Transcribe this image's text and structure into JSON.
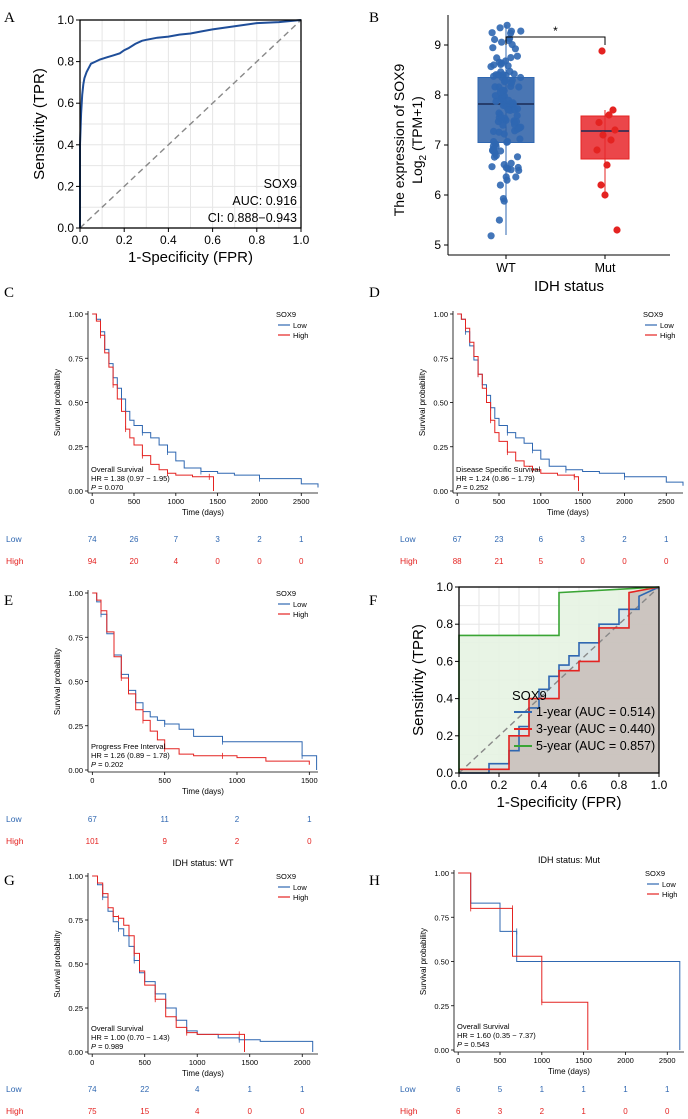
{
  "chart_data": [
    {
      "panel": "A",
      "type": "line",
      "subtype": "roc",
      "xlabel": "1-Specificity (FPR)",
      "ylabel": "Sensitivity (TPR)",
      "xlim": [
        0,
        1
      ],
      "ylim": [
        0,
        1
      ],
      "xticks": [
        "0.0",
        "0.2",
        "0.4",
        "0.6",
        "0.8",
        "1.0"
      ],
      "yticks": [
        "0.0",
        "0.2",
        "0.4",
        "0.6",
        "0.8",
        "1.0"
      ],
      "grid": true,
      "annotations": [
        "SOX9",
        "AUC: 0.916",
        "CI: 0.888−0.943"
      ],
      "series": [
        {
          "name": "SOX9",
          "color": "#1f4e99",
          "x": [
            0,
            0,
            0.005,
            0.01,
            0.015,
            0.02,
            0.03,
            0.04,
            0.05,
            0.07,
            0.09,
            0.12,
            0.15,
            0.18,
            0.2,
            0.22,
            0.25,
            0.28,
            0.3,
            0.35,
            0.4,
            0.45,
            0.5,
            0.55,
            0.6,
            0.7,
            0.8,
            0.9,
            1.0
          ],
          "y": [
            0,
            0.4,
            0.55,
            0.64,
            0.69,
            0.72,
            0.75,
            0.77,
            0.79,
            0.8,
            0.81,
            0.82,
            0.83,
            0.84,
            0.855,
            0.865,
            0.885,
            0.9,
            0.905,
            0.915,
            0.92,
            0.93,
            0.935,
            0.945,
            0.955,
            0.97,
            0.985,
            0.99,
            1.0
          ]
        },
        {
          "name": "reference",
          "color": "#888888",
          "x": [
            0,
            1
          ],
          "y": [
            0,
            1
          ]
        }
      ]
    },
    {
      "panel": "B",
      "type": "scatter",
      "subtype": "boxplot",
      "categories": [
        "WT",
        "Mut"
      ],
      "xlabel": "IDH status",
      "ylabel_line1": "The expression of SOX9",
      "ylabel_line2": "Log",
      "ylabel_sub": "2",
      "ylabel_tail": " (TPM+1)",
      "ylim": [
        4.8,
        9.6
      ],
      "yticks": [
        "5",
        "6",
        "7",
        "8",
        "9"
      ],
      "significance": "*",
      "series": [
        {
          "name": "WT",
          "color": "#2f67b1",
          "q1": 7.05,
          "median": 7.82,
          "q3": 8.35,
          "lower": 5.2,
          "upper": 9.4
        },
        {
          "name": "Mut",
          "color": "#e42321",
          "q1": 6.72,
          "median": 7.28,
          "q3": 7.58,
          "lower": 6.0,
          "upper": 7.7,
          "points": [
            8.88,
            7.7,
            7.6,
            7.45,
            7.3,
            7.2,
            7.1,
            6.9,
            6.6,
            6.2,
            6.0,
            5.3
          ]
        }
      ]
    },
    {
      "panel": "C",
      "type": "line",
      "subtype": "kaplan-meier",
      "legend_title": "SOX9",
      "legend_labels": [
        "Low",
        "High"
      ],
      "ylabel": "Survival probability",
      "xlabel": "Time (days)",
      "xlim": [
        -50,
        2700
      ],
      "xticks": [
        "0",
        "500",
        "1000",
        "1500",
        "2000",
        "2500"
      ],
      "yticks": [
        "0.00",
        "0.25",
        "0.50",
        "0.75",
        "1.00"
      ],
      "annotation_title": "Overall Survival",
      "hr_text": "HR = 1.38 (0.97 − 1.95)",
      "p_label": "P",
      "p_value": " = 0.070",
      "risk_labels": [
        "Low",
        "High"
      ],
      "risk_low": [
        "74",
        "26",
        "7",
        "3",
        "2",
        "1"
      ],
      "risk_high": [
        "94",
        "20",
        "4",
        "0",
        "0",
        "0"
      ],
      "series": [
        {
          "name": "Low",
          "color": "#2f67b1",
          "x": [
            0,
            50,
            100,
            150,
            200,
            250,
            300,
            350,
            400,
            450,
            500,
            600,
            700,
            800,
            900,
            1000,
            1100,
            1300,
            1500,
            1700,
            2000,
            2500,
            2700
          ],
          "y": [
            1.0,
            0.97,
            0.9,
            0.8,
            0.72,
            0.64,
            0.58,
            0.52,
            0.45,
            0.4,
            0.37,
            0.33,
            0.3,
            0.26,
            0.22,
            0.17,
            0.13,
            0.11,
            0.1,
            0.09,
            0.07,
            0.04,
            0.02
          ]
        },
        {
          "name": "High",
          "color": "#e42321",
          "x": [
            0,
            50,
            100,
            150,
            200,
            250,
            300,
            350,
            400,
            450,
            500,
            600,
            700,
            800,
            900,
            1000,
            1200,
            1400,
            1450
          ],
          "y": [
            1.0,
            0.96,
            0.88,
            0.78,
            0.7,
            0.6,
            0.52,
            0.45,
            0.35,
            0.3,
            0.26,
            0.2,
            0.15,
            0.12,
            0.1,
            0.09,
            0.08,
            0.08,
            0.0
          ]
        }
      ]
    },
    {
      "panel": "D",
      "type": "line",
      "subtype": "kaplan-meier",
      "legend_title": "SOX9",
      "legend_labels": [
        "Low",
        "High"
      ],
      "ylabel": "Survival probability",
      "xlabel": "Time (days)",
      "xlim": [
        -50,
        2700
      ],
      "xticks": [
        "0",
        "500",
        "1000",
        "1500",
        "2000",
        "2500"
      ],
      "yticks": [
        "0.00",
        "0.25",
        "0.50",
        "0.75",
        "1.00"
      ],
      "annotation_title": "Disease Specific Survival",
      "hr_text": "HR = 1.24 (0.86 − 1.79)",
      "p_label": "P",
      "p_value": " = 0.252",
      "risk_labels": [
        "Low",
        "High"
      ],
      "risk_low": [
        "67",
        "23",
        "6",
        "3",
        "2",
        "1"
      ],
      "risk_high": [
        "88",
        "21",
        "5",
        "0",
        "0",
        "0"
      ],
      "series": [
        {
          "name": "Low",
          "color": "#2f67b1",
          "x": [
            0,
            50,
            100,
            150,
            200,
            250,
            300,
            350,
            400,
            450,
            500,
            600,
            700,
            800,
            900,
            1000,
            1100,
            1300,
            1500,
            1700,
            2000,
            2500,
            2700
          ],
          "y": [
            1.0,
            0.97,
            0.9,
            0.82,
            0.74,
            0.66,
            0.6,
            0.54,
            0.47,
            0.41,
            0.37,
            0.33,
            0.3,
            0.27,
            0.23,
            0.18,
            0.14,
            0.12,
            0.11,
            0.1,
            0.08,
            0.05,
            0.03
          ]
        },
        {
          "name": "High",
          "color": "#e42321",
          "x": [
            0,
            50,
            100,
            150,
            200,
            250,
            300,
            350,
            400,
            450,
            500,
            600,
            700,
            800,
            900,
            1000,
            1200,
            1400,
            1450
          ],
          "y": [
            1.0,
            0.97,
            0.92,
            0.84,
            0.76,
            0.66,
            0.58,
            0.5,
            0.4,
            0.33,
            0.28,
            0.22,
            0.17,
            0.14,
            0.12,
            0.1,
            0.09,
            0.08,
            0.0
          ]
        }
      ]
    },
    {
      "panel": "E",
      "type": "line",
      "subtype": "kaplan-meier",
      "legend_title": "SOX9",
      "legend_labels": [
        "Low",
        "High"
      ],
      "ylabel": "Survival probability",
      "xlabel": "Time (days)",
      "xlim": [
        -30,
        1560
      ],
      "xticks": [
        "0",
        "500",
        "1000",
        "1500"
      ],
      "yticks": [
        "0.00",
        "0.25",
        "0.50",
        "0.75",
        "1.00"
      ],
      "annotation_title": "Progress Free Interval",
      "hr_text": "HR = 1.26 (0.89 − 1.78)",
      "p_label": "P",
      "p_value": " = 0.202",
      "risk_labels": [
        "Low",
        "High"
      ],
      "risk_low": [
        "67",
        "11",
        "2",
        "1"
      ],
      "risk_high": [
        "101",
        "9",
        "2",
        "0"
      ],
      "series": [
        {
          "name": "Low",
          "color": "#2f67b1",
          "x": [
            0,
            30,
            60,
            100,
            150,
            200,
            250,
            300,
            350,
            400,
            450,
            500,
            600,
            700,
            900,
            1000,
            1200,
            1450,
            1550
          ],
          "y": [
            1.0,
            0.95,
            0.88,
            0.77,
            0.65,
            0.54,
            0.45,
            0.38,
            0.33,
            0.3,
            0.28,
            0.26,
            0.23,
            0.19,
            0.16,
            0.16,
            0.16,
            0.08,
            0.0
          ]
        },
        {
          "name": "High",
          "color": "#e42321",
          "x": [
            0,
            30,
            60,
            100,
            150,
            200,
            250,
            300,
            350,
            400,
            450,
            500,
            600,
            700,
            900,
            1000,
            1200,
            1500
          ],
          "y": [
            1.0,
            0.96,
            0.9,
            0.78,
            0.64,
            0.52,
            0.43,
            0.34,
            0.28,
            0.22,
            0.17,
            0.12,
            0.09,
            0.08,
            0.08,
            0.07,
            0.05,
            0.03
          ]
        }
      ]
    },
    {
      "panel": "F",
      "type": "line",
      "subtype": "time-roc",
      "xlabel": "1-Specificity (FPR)",
      "ylabel": "Sensitivity (TPR)",
      "xlim": [
        0,
        1
      ],
      "ylim": [
        0,
        1
      ],
      "xticks": [
        "0.0",
        "0.2",
        "0.4",
        "0.6",
        "0.8",
        "1.0"
      ],
      "yticks": [
        "0.0",
        "0.2",
        "0.4",
        "0.6",
        "0.8",
        "1.0"
      ],
      "legend_title": "SOX9",
      "series": [
        {
          "name": "1-year (AUC = 0.514)",
          "color": "#2f67b1",
          "x": [
            0,
            0.15,
            0.15,
            0.25,
            0.25,
            0.3,
            0.3,
            0.35,
            0.35,
            0.4,
            0.4,
            0.45,
            0.45,
            0.5,
            0.5,
            0.55,
            0.55,
            0.6,
            0.6,
            0.7,
            0.7,
            0.8,
            0.8,
            0.9,
            0.9,
            1.0
          ],
          "y": [
            0,
            0,
            0.05,
            0.05,
            0.12,
            0.12,
            0.25,
            0.25,
            0.35,
            0.35,
            0.45,
            0.45,
            0.52,
            0.52,
            0.58,
            0.58,
            0.63,
            0.63,
            0.7,
            0.7,
            0.8,
            0.8,
            0.88,
            0.88,
            0.95,
            1.0
          ]
        },
        {
          "name": "3-year (AUC = 0.440)",
          "color": "#e42321",
          "x": [
            0,
            0.25,
            0.25,
            0.35,
            0.35,
            0.5,
            0.5,
            0.6,
            0.6,
            0.7,
            0.7,
            0.85,
            0.85,
            1.0
          ],
          "y": [
            0.02,
            0.02,
            0.2,
            0.2,
            0.4,
            0.4,
            0.55,
            0.55,
            0.6,
            0.6,
            0.78,
            0.78,
            0.97,
            1.0
          ]
        },
        {
          "name": "5-year (AUC = 0.857)",
          "color": "#3aa535",
          "x": [
            0,
            0,
            0.5,
            0.5,
            1.0
          ],
          "y": [
            0,
            0.74,
            0.74,
            0.97,
            1.0
          ]
        },
        {
          "name": "reference",
          "color": "#888888",
          "x": [
            0,
            1
          ],
          "y": [
            0,
            1
          ]
        }
      ]
    },
    {
      "panel": "G",
      "type": "line",
      "subtype": "kaplan-meier",
      "title": "IDH status: WT",
      "legend_title": "SOX9",
      "legend_labels": [
        "Low",
        "High"
      ],
      "ylabel": "Survival probability",
      "xlabel": "Time (days)",
      "xlim": [
        -40,
        2150
      ],
      "xticks": [
        "0",
        "500",
        "1000",
        "1500",
        "2000"
      ],
      "yticks": [
        "0.00",
        "0.25",
        "0.50",
        "0.75",
        "1.00"
      ],
      "annotation_title": "Overall Survival",
      "hr_text": "HR = 1.00 (0.70 − 1.43)",
      "p_label": "P",
      "p_value": " = 0.989",
      "risk_labels": [
        "Low",
        "High"
      ],
      "risk_low": [
        "74",
        "22",
        "4",
        "1",
        "1"
      ],
      "risk_high": [
        "75",
        "15",
        "4",
        "0",
        "0"
      ],
      "series": [
        {
          "name": "Low",
          "color": "#2f67b1",
          "x": [
            0,
            50,
            100,
            150,
            200,
            250,
            300,
            350,
            400,
            450,
            500,
            600,
            700,
            800,
            900,
            1000,
            1200,
            1400,
            1600,
            2000,
            2100
          ],
          "y": [
            1.0,
            0.95,
            0.88,
            0.8,
            0.74,
            0.7,
            0.66,
            0.6,
            0.52,
            0.45,
            0.4,
            0.33,
            0.25,
            0.18,
            0.12,
            0.1,
            0.08,
            0.07,
            0.06,
            0.06,
            0.0
          ]
        },
        {
          "name": "High",
          "color": "#e42321",
          "x": [
            0,
            50,
            100,
            150,
            200,
            250,
            300,
            350,
            400,
            450,
            500,
            600,
            700,
            800,
            900,
            1000,
            1200,
            1400,
            1450
          ],
          "y": [
            1.0,
            0.96,
            0.9,
            0.82,
            0.77,
            0.76,
            0.72,
            0.66,
            0.56,
            0.46,
            0.38,
            0.3,
            0.2,
            0.14,
            0.11,
            0.1,
            0.1,
            0.1,
            0.0
          ]
        }
      ]
    },
    {
      "panel": "H",
      "type": "line",
      "subtype": "kaplan-meier",
      "title": "IDH status: Mut",
      "legend_title": "SOX9",
      "legend_labels": [
        "Low",
        "High"
      ],
      "ylabel": "Survival probability",
      "xlabel": "Time (days)",
      "xlim": [
        -50,
        2700
      ],
      "xticks": [
        "0",
        "500",
        "1000",
        "1500",
        "2000",
        "2500"
      ],
      "yticks": [
        "0.00",
        "0.25",
        "0.50",
        "0.75",
        "1.00"
      ],
      "annotation_title": "Overall Survival",
      "hr_text": "HR = 1.60 (0.35 − 7.37)",
      "p_label": "P",
      "p_value": " = 0.543",
      "risk_labels": [
        "Low",
        "High"
      ],
      "risk_low": [
        "6",
        "5",
        "1",
        "1",
        "1",
        "1"
      ],
      "risk_high": [
        "6",
        "3",
        "2",
        "1",
        "0",
        "0"
      ],
      "series": [
        {
          "name": "Low",
          "color": "#2f67b1",
          "x": [
            0,
            150,
            150,
            500,
            500,
            700,
            700,
            2650,
            2650
          ],
          "y": [
            1.0,
            1.0,
            0.83,
            0.83,
            0.67,
            0.67,
            0.5,
            0.5,
            0.0
          ]
        },
        {
          "name": "High",
          "color": "#e42321",
          "x": [
            0,
            150,
            150,
            500,
            500,
            650,
            650,
            1000,
            1000,
            1550,
            1550
          ],
          "y": [
            1.0,
            1.0,
            0.8,
            0.8,
            0.8,
            0.8,
            0.53,
            0.53,
            0.27,
            0.27,
            0.0
          ]
        }
      ]
    }
  ],
  "panel_letters": [
    "A",
    "B",
    "C",
    "D",
    "E",
    "F",
    "G",
    "H"
  ]
}
